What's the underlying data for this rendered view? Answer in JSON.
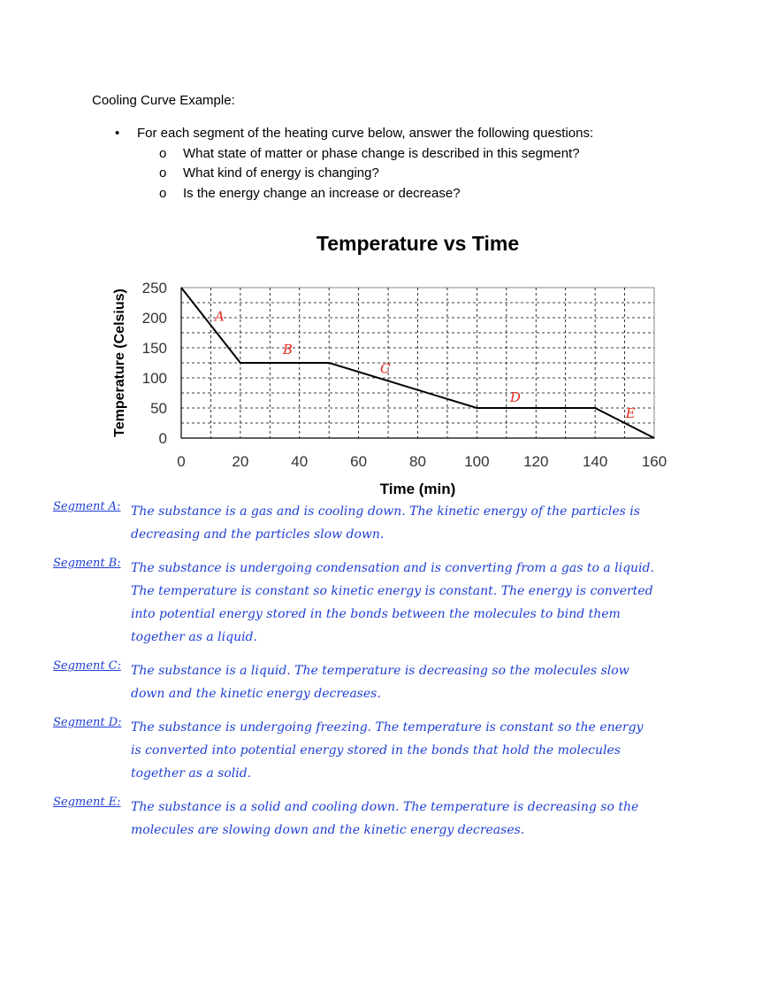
{
  "document": {
    "heading": "Cooling Curve Example:",
    "bullet": "For each segment of the heating curve below, answer the following questions:",
    "questions": [
      "What state of matter or phase change is described in this segment?",
      "What kind of energy is changing?",
      "Is the energy change an increase or decrease?"
    ],
    "bullet_glyph": "•",
    "sub_glyph": "o"
  },
  "chart_data": {
    "type": "line",
    "title": "Temperature vs Time",
    "xlabel": "Time (min)",
    "ylabel": "Temperature (Celsius)",
    "xlim": [
      0,
      160
    ],
    "ylim": [
      0,
      250
    ],
    "xticks": [
      0,
      20,
      40,
      60,
      80,
      100,
      120,
      140,
      160
    ],
    "yticks": [
      0,
      50,
      100,
      150,
      200,
      250
    ],
    "grid": true,
    "series": [
      {
        "x": [
          0,
          20,
          50,
          100,
          140,
          160
        ],
        "y": [
          250,
          125,
          125,
          50,
          50,
          0
        ]
      }
    ],
    "annotations": [
      {
        "text": "A",
        "x": 13,
        "y": 195
      },
      {
        "text": "B",
        "x": 36,
        "y": 140
      },
      {
        "text": "C",
        "x": 69,
        "y": 108
      },
      {
        "text": "D",
        "x": 113,
        "y": 60
      },
      {
        "text": "E",
        "x": 152,
        "y": 34
      }
    ],
    "colors": {
      "line": "#000000",
      "annotation": "#e8281f",
      "grid": "#000000"
    }
  },
  "answers": [
    {
      "label": "Segment A:",
      "text": "The substance is a gas and is cooling down. The kinetic energy of the particles is decreasing and the particles slow down."
    },
    {
      "label": "Segment B:",
      "text": "The substance is undergoing condensation and is converting from a gas to a liquid. The temperature is constant so kinetic energy is constant. The energy is converted into potential energy stored in the bonds between the molecules to bind them together as a liquid."
    },
    {
      "label": "Segment C:",
      "text": "The substance is a liquid. The temperature is decreasing so the molecules slow down and the kinetic energy decreases."
    },
    {
      "label": "Segment D:",
      "text": "The substance is undergoing freezing. The temperature is constant so the energy is converted into potential energy stored in the bonds that hold the molecules together as a solid."
    },
    {
      "label": "Segment E:",
      "text": "The substance is a solid and cooling down. The temperature is decreasing so the molecules are slowing down and the kinetic energy decreases."
    }
  ],
  "colors": {
    "ink": "#1e3fd2"
  }
}
